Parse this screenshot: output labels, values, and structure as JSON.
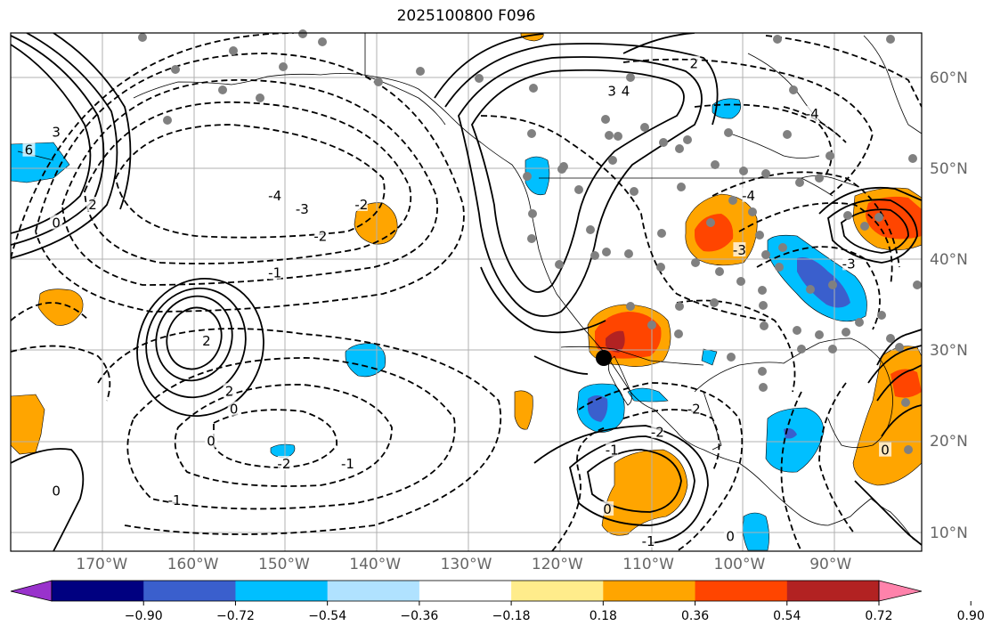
{
  "title": "2025100800 F096",
  "longitude_labels": [
    "170°W",
    "160°W",
    "150°W",
    "140°W",
    "130°W",
    "120°W",
    "110°W",
    "100°W",
    "90°W"
  ],
  "latitude_labels": [
    "60°N",
    "50°N",
    "40°N",
    "30°N",
    "20°N",
    "10°N"
  ],
  "colorbar": {
    "tick_labels": [
      "−0.90",
      "−0.72",
      "−0.54",
      "−0.36",
      "−0.18",
      "0.18",
      "0.36",
      "0.54",
      "0.72",
      "0.90"
    ],
    "colors": [
      "#9932cc",
      "#000080",
      "#3a5fcd",
      "#00bfff",
      "#b0e2ff",
      "#ffffff",
      "#ffec8b",
      "#ffa500",
      "#ff4500",
      "#b22222",
      "#ff82ab"
    ]
  },
  "chart_data": {
    "type": "map",
    "title": "2025100800 F096",
    "lon_range": [
      -180,
      -80
    ],
    "lat_range": [
      8,
      65
    ],
    "contour_labels": [
      {
        "value": "6",
        "lon": -178,
        "lat": 52
      },
      {
        "value": "3",
        "lon": -175,
        "lat": 54
      },
      {
        "value": "0",
        "lon": -175,
        "lat": 44
      },
      {
        "value": "2",
        "lon": -171,
        "lat": 46
      },
      {
        "value": "-4",
        "lon": -151,
        "lat": 47
      },
      {
        "value": "-3",
        "lon": -148,
        "lat": 45.5
      },
      {
        "value": "-2",
        "lon": -141.5,
        "lat": 46
      },
      {
        "value": "-2",
        "lon": -146,
        "lat": 42.5
      },
      {
        "value": "-1",
        "lon": -151,
        "lat": 38.5
      },
      {
        "value": "2",
        "lon": -158.5,
        "lat": 31
      },
      {
        "value": "2",
        "lon": -156,
        "lat": 25.5
      },
      {
        "value": "0",
        "lon": -155.5,
        "lat": 23.5
      },
      {
        "value": "0",
        "lon": -158,
        "lat": 20
      },
      {
        "value": "-2",
        "lon": -150,
        "lat": 17.5
      },
      {
        "value": "-1",
        "lon": -143,
        "lat": 17.5
      },
      {
        "value": "-1",
        "lon": -162,
        "lat": 13.5
      },
      {
        "value": "0",
        "lon": -175,
        "lat": 14.5
      },
      {
        "value": "3",
        "lon": -114,
        "lat": 58.5
      },
      {
        "value": "4",
        "lon": -112.5,
        "lat": 58.5
      },
      {
        "value": "2",
        "lon": -105,
        "lat": 61.5
      },
      {
        "value": "-4",
        "lon": -99,
        "lat": 47
      },
      {
        "value": "-4",
        "lon": -92,
        "lat": 56
      },
      {
        "value": "-3",
        "lon": -88,
        "lat": 39.5
      },
      {
        "value": "-3",
        "lon": -100,
        "lat": 41
      },
      {
        "value": "-2",
        "lon": -109,
        "lat": 21
      },
      {
        "value": "-1",
        "lon": -114,
        "lat": 19
      },
      {
        "value": "-2",
        "lon": -105,
        "lat": 23.5
      },
      {
        "value": "0",
        "lon": -101,
        "lat": 9.5
      },
      {
        "value": "0",
        "lon": -114.5,
        "lat": 12.5
      },
      {
        "value": "-1",
        "lon": -110,
        "lat": 9
      },
      {
        "value": "0",
        "lon": -84,
        "lat": 19
      }
    ],
    "colorbar_range": [
      -0.9,
      0.9
    ],
    "features": [
      "black dashed and solid contours",
      "shaded anomalies",
      "grey station dots",
      "black marker near 29°N 115°W",
      "coastlines and US/Canada borders"
    ]
  }
}
